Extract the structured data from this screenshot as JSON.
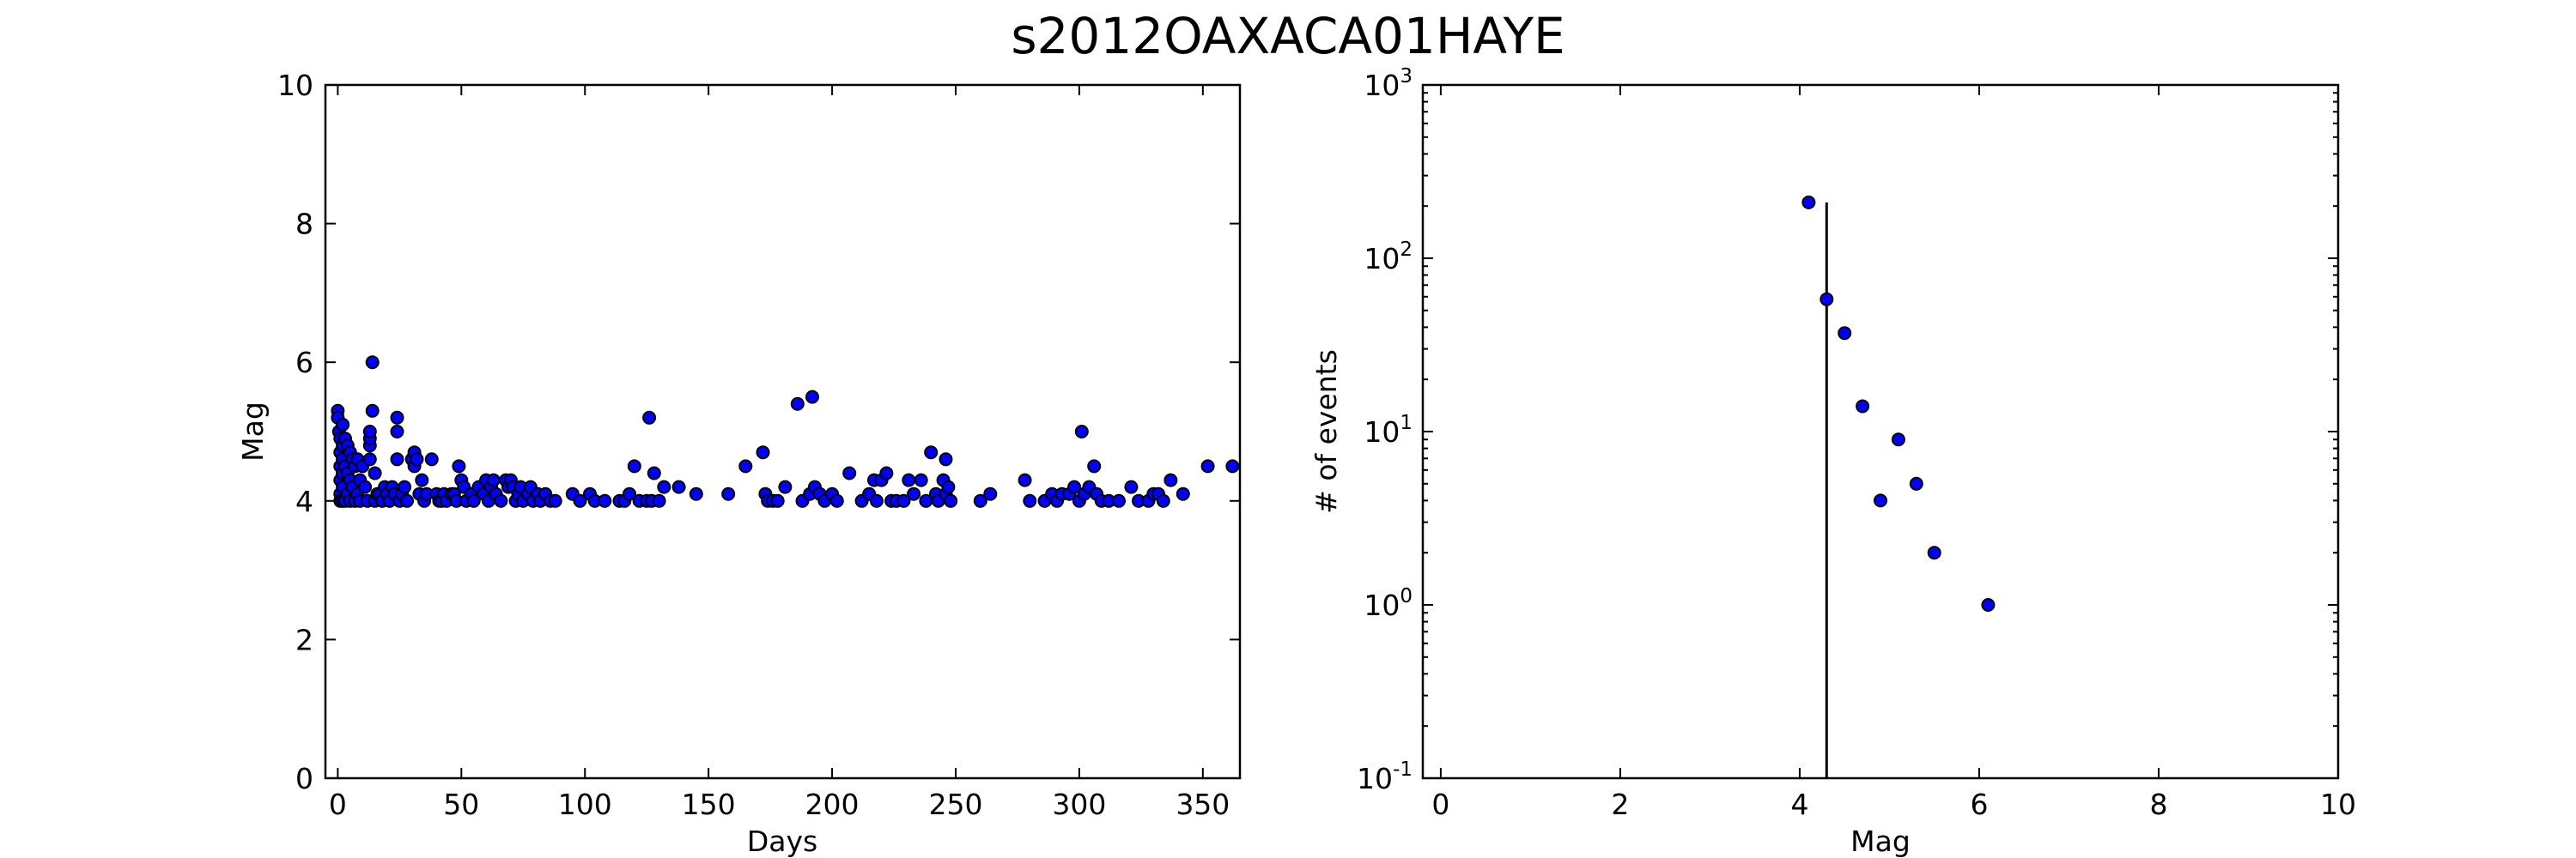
{
  "figure": {
    "title": "s2012OAXACA01HAYE"
  },
  "chart_data": [
    {
      "type": "scatter",
      "xlabel": "Days",
      "ylabel": "Mag",
      "xlim": [
        -5,
        365
      ],
      "ylim": [
        0,
        10
      ],
      "xticks": [
        0,
        50,
        100,
        150,
        200,
        250,
        300,
        350
      ],
      "yticks": [
        0,
        2,
        4,
        6,
        8,
        10
      ],
      "points": [
        [
          0,
          5.3
        ],
        [
          0,
          5.2
        ],
        [
          0.5,
          5.0
        ],
        [
          1,
          4.9
        ],
        [
          1,
          4.7
        ],
        [
          1,
          4.5
        ],
        [
          1,
          4.3
        ],
        [
          1,
          4.1
        ],
        [
          1,
          4.0
        ],
        [
          2,
          5.1
        ],
        [
          2,
          4.8
        ],
        [
          2,
          4.6
        ],
        [
          2,
          4.4
        ],
        [
          2,
          4.2
        ],
        [
          2,
          4.0
        ],
        [
          3,
          4.9
        ],
        [
          3,
          4.5
        ],
        [
          3,
          4.0
        ],
        [
          4,
          4.8
        ],
        [
          4,
          4.4
        ],
        [
          4,
          4.1
        ],
        [
          5,
          4.7
        ],
        [
          5,
          4.3
        ],
        [
          5,
          4.0
        ],
        [
          6,
          4.6
        ],
        [
          6,
          4.2
        ],
        [
          7,
          4.5
        ],
        [
          7,
          4.0
        ],
        [
          8,
          4.6
        ],
        [
          8,
          4.1
        ],
        [
          9,
          4.3
        ],
        [
          9,
          4.0
        ],
        [
          10,
          4.5
        ],
        [
          11,
          4.2
        ],
        [
          12,
          4.0
        ],
        [
          13,
          4.6
        ],
        [
          13,
          4.8
        ],
        [
          13,
          4.9
        ],
        [
          13,
          5.0
        ],
        [
          14,
          5.3
        ],
        [
          14,
          6.0
        ],
        [
          15,
          4.4
        ],
        [
          15,
          4.0
        ],
        [
          16,
          4.1
        ],
        [
          17,
          4.1
        ],
        [
          18,
          4.0
        ],
        [
          19,
          4.2
        ],
        [
          20,
          4.1
        ],
        [
          21,
          4.0
        ],
        [
          22,
          4.2
        ],
        [
          23,
          4.1
        ],
        [
          24,
          5.2
        ],
        [
          24,
          5.0
        ],
        [
          24,
          4.6
        ],
        [
          25,
          4.0
        ],
        [
          26,
          4.1
        ],
        [
          27,
          4.2
        ],
        [
          28,
          4.0
        ],
        [
          30,
          4.6
        ],
        [
          31,
          4.7
        ],
        [
          31,
          4.5
        ],
        [
          32,
          4.6
        ],
        [
          33,
          4.1
        ],
        [
          34,
          4.3
        ],
        [
          35,
          4.0
        ],
        [
          36,
          4.1
        ],
        [
          38,
          4.6
        ],
        [
          40,
          4.1
        ],
        [
          41,
          4.0
        ],
        [
          42,
          4.0
        ],
        [
          43,
          4.1
        ],
        [
          44,
          4.0
        ],
        [
          46,
          4.1
        ],
        [
          47,
          4.1
        ],
        [
          48,
          4.0
        ],
        [
          49,
          4.5
        ],
        [
          50,
          4.3
        ],
        [
          51,
          4.2
        ],
        [
          52,
          4.0
        ],
        [
          54,
          4.1
        ],
        [
          55,
          4.0
        ],
        [
          57,
          4.2
        ],
        [
          59,
          4.1
        ],
        [
          60,
          4.3
        ],
        [
          61,
          4.0
        ],
        [
          62,
          4.2
        ],
        [
          63,
          4.3
        ],
        [
          64,
          4.1
        ],
        [
          66,
          4.0
        ],
        [
          68,
          4.3
        ],
        [
          69,
          4.2
        ],
        [
          70,
          4.3
        ],
        [
          71,
          4.2
        ],
        [
          72,
          4.0
        ],
        [
          73,
          4.1
        ],
        [
          74,
          4.2
        ],
        [
          75,
          4.0
        ],
        [
          77,
          4.1
        ],
        [
          78,
          4.2
        ],
        [
          79,
          4.0
        ],
        [
          81,
          4.1
        ],
        [
          82,
          4.0
        ],
        [
          84,
          4.1
        ],
        [
          86,
          4.0
        ],
        [
          88,
          4.0
        ],
        [
          95,
          4.1
        ],
        [
          98,
          4.0
        ],
        [
          102,
          4.1
        ],
        [
          104,
          4.0
        ],
        [
          108,
          4.0
        ],
        [
          114,
          4.0
        ],
        [
          116,
          4.0
        ],
        [
          118,
          4.1
        ],
        [
          120,
          4.5
        ],
        [
          122,
          4.0
        ],
        [
          125,
          4.0
        ],
        [
          126,
          5.2
        ],
        [
          127,
          4.0
        ],
        [
          128,
          4.4
        ],
        [
          130,
          4.0
        ],
        [
          132,
          4.2
        ],
        [
          138,
          4.2
        ],
        [
          145,
          4.1
        ],
        [
          158,
          4.1
        ],
        [
          165,
          4.5
        ],
        [
          172,
          4.7
        ],
        [
          173,
          4.1
        ],
        [
          174,
          4.0
        ],
        [
          176,
          4.0
        ],
        [
          178,
          4.0
        ],
        [
          181,
          4.2
        ],
        [
          186,
          5.4
        ],
        [
          188,
          4.0
        ],
        [
          191,
          4.1
        ],
        [
          192,
          5.5
        ],
        [
          193,
          4.2
        ],
        [
          195,
          4.1
        ],
        [
          197,
          4.0
        ],
        [
          200,
          4.1
        ],
        [
          202,
          4.0
        ],
        [
          207,
          4.4
        ],
        [
          212,
          4.0
        ],
        [
          215,
          4.1
        ],
        [
          217,
          4.3
        ],
        [
          218,
          4.0
        ],
        [
          220,
          4.3
        ],
        [
          222,
          4.4
        ],
        [
          224,
          4.0
        ],
        [
          226,
          4.0
        ],
        [
          229,
          4.0
        ],
        [
          231,
          4.3
        ],
        [
          233,
          4.1
        ],
        [
          236,
          4.3
        ],
        [
          238,
          4.0
        ],
        [
          240,
          4.7
        ],
        [
          242,
          4.1
        ],
        [
          243,
          4.0
        ],
        [
          245,
          4.3
        ],
        [
          246,
          4.1
        ],
        [
          246,
          4.6
        ],
        [
          247,
          4.2
        ],
        [
          248,
          4.0
        ],
        [
          260,
          4.0
        ],
        [
          264,
          4.1
        ],
        [
          278,
          4.3
        ],
        [
          280,
          4.0
        ],
        [
          286,
          4.0
        ],
        [
          289,
          4.1
        ],
        [
          291,
          4.0
        ],
        [
          293,
          4.1
        ],
        [
          296,
          4.1
        ],
        [
          298,
          4.2
        ],
        [
          300,
          4.0
        ],
        [
          301,
          5.0
        ],
        [
          302,
          4.1
        ],
        [
          304,
          4.2
        ],
        [
          306,
          4.5
        ],
        [
          307,
          4.1
        ],
        [
          309,
          4.0
        ],
        [
          312,
          4.0
        ],
        [
          316,
          4.0
        ],
        [
          321,
          4.2
        ],
        [
          324,
          4.0
        ],
        [
          328,
          4.0
        ],
        [
          330,
          4.1
        ],
        [
          332,
          4.1
        ],
        [
          334,
          4.0
        ],
        [
          337,
          4.3
        ],
        [
          342,
          4.1
        ],
        [
          352,
          4.5
        ],
        [
          362,
          4.5
        ]
      ]
    },
    {
      "type": "scatter",
      "xlabel": "Mag",
      "ylabel": "# of events",
      "xlim": [
        -0.2,
        10
      ],
      "ylim": [
        0.1,
        1000
      ],
      "yscale": "log",
      "xticks": [
        0,
        2,
        4,
        6,
        8,
        10
      ],
      "yticks": [
        {
          "value": 0.1,
          "base": "10",
          "exp": "-1"
        },
        {
          "value": 1,
          "base": "10",
          "exp": "0"
        },
        {
          "value": 10,
          "base": "10",
          "exp": "1"
        },
        {
          "value": 100,
          "base": "10",
          "exp": "2"
        },
        {
          "value": 1000,
          "base": "10",
          "exp": "3"
        }
      ],
      "points": [
        [
          4.1,
          210
        ],
        [
          4.3,
          58
        ],
        [
          4.5,
          37
        ],
        [
          4.7,
          14
        ],
        [
          4.9,
          4
        ],
        [
          5.1,
          9
        ],
        [
          5.3,
          5
        ],
        [
          5.5,
          2
        ],
        [
          6.1,
          1
        ]
      ],
      "vline": {
        "x": 4.3,
        "y_top": 210
      }
    }
  ]
}
